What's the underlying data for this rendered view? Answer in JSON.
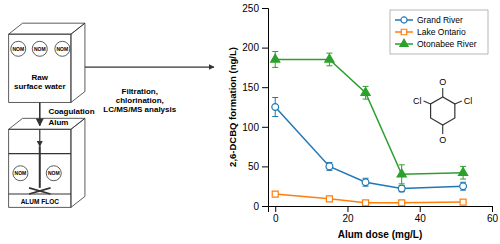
{
  "chart_data": {
    "type": "line",
    "xlabel": "Alum dose (mg/L)",
    "ylabel": "2,6-DCBQ formation (ng/L)",
    "xlim": [
      -2,
      60
    ],
    "ylim": [
      0,
      250
    ],
    "xticks": [
      0,
      20,
      40,
      60
    ],
    "yticks": [
      0,
      50,
      100,
      150,
      200,
      250
    ],
    "x": [
      0,
      15,
      25,
      35,
      52
    ],
    "series": [
      {
        "name": "Grand River",
        "marker": "circle-open",
        "values": [
          125,
          50,
          30,
          22,
          25
        ],
        "errors": [
          12,
          5,
          5,
          4,
          5
        ]
      },
      {
        "name": "Lake Ontario",
        "marker": "square-open",
        "values": [
          15,
          9,
          4,
          4,
          5
        ],
        "errors": [
          2,
          2,
          1,
          1,
          1
        ]
      },
      {
        "name": "Otonabee River",
        "marker": "triangle",
        "values": [
          185,
          185,
          143,
          40,
          42
        ],
        "errors": [
          10,
          8,
          8,
          12,
          8
        ]
      }
    ],
    "legend": "upper right",
    "annotations": [
      "Raw\nsurface water",
      "Coagulation",
      "Alum",
      "ALUM FLOC",
      "NOM",
      "NOM",
      "NOM",
      "NOM",
      "NOM",
      "Filtration,\nchlorination,\nLC/MS/MS analysis",
      "O",
      "O",
      "Cl",
      "Cl"
    ]
  }
}
